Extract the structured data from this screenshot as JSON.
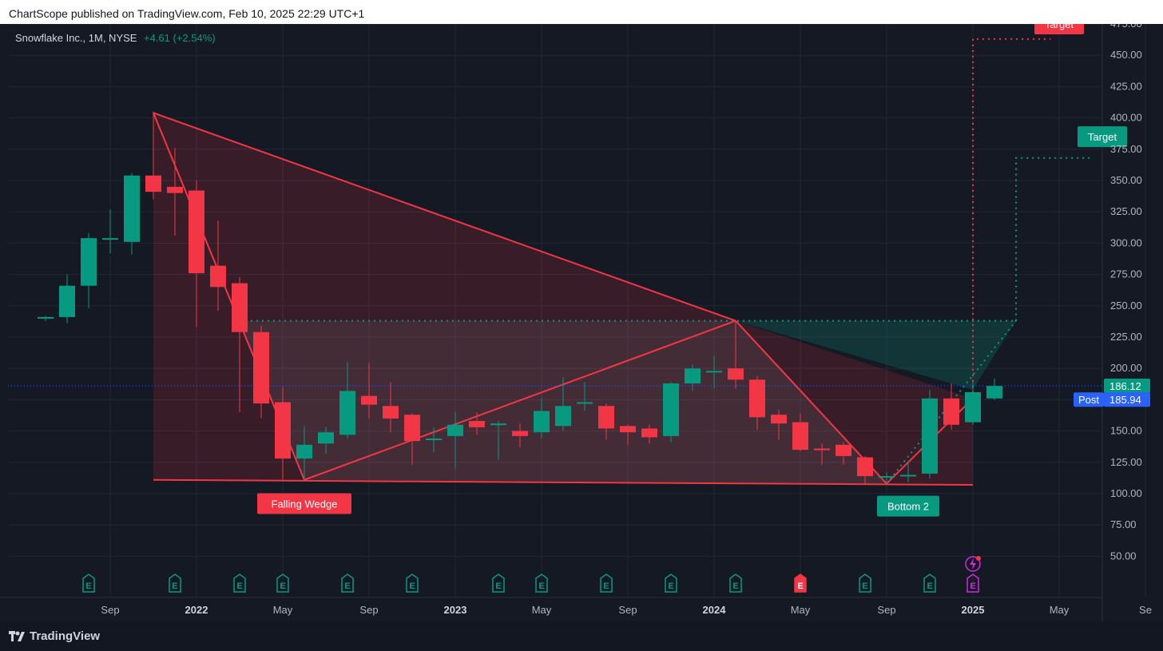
{
  "header": {
    "published_text": "ChartScope published on TradingView.com, Feb 10, 2025 22:29 UTC+1"
  },
  "symbol": {
    "name": "Snowflake Inc., 1M, NYSE",
    "change": "+4.61 (+2.54%)"
  },
  "footer": {
    "brand": "TradingView"
  },
  "colors": {
    "background": "#151924",
    "up": "#089981",
    "down": "#f23645",
    "grid": "#232735",
    "axis_text": "#b2b5be",
    "price_tag": "#2962ff"
  },
  "chart_data": {
    "type": "candlestick",
    "title": "Snowflake Inc., 1M, NYSE",
    "ylim": [
      40,
      490
    ],
    "y_ticks": [
      "475.00",
      "450.00",
      "425.00",
      "400.00",
      "375.00",
      "350.00",
      "325.00",
      "300.00",
      "275.00",
      "250.00",
      "225.00",
      "200.00",
      "175.00",
      "150.00",
      "125.00",
      "100.00",
      "75.00",
      "50.00"
    ],
    "x_ticks": [
      {
        "label": "Sep",
        "i": 2
      },
      {
        "label": "2022",
        "i": 6
      },
      {
        "label": "May",
        "i": 10
      },
      {
        "label": "Sep",
        "i": 14
      },
      {
        "label": "2023",
        "i": 18
      },
      {
        "label": "May",
        "i": 22
      },
      {
        "label": "Sep",
        "i": 26
      },
      {
        "label": "2024",
        "i": 30
      },
      {
        "label": "May",
        "i": 34
      },
      {
        "label": "Sep",
        "i": 38
      },
      {
        "label": "2025",
        "i": 42
      },
      {
        "label": "May",
        "i": 46
      },
      {
        "label": "Se",
        "i": 50
      }
    ],
    "candles": [
      {
        "i": -1,
        "o": 240,
        "h": 242,
        "l": 238,
        "c": 241
      },
      {
        "i": 0,
        "o": 241,
        "h": 275,
        "l": 236,
        "c": 266
      },
      {
        "i": 1,
        "o": 266,
        "h": 308,
        "l": 248,
        "c": 304
      },
      {
        "i": 2,
        "o": 303,
        "h": 327,
        "l": 292,
        "c": 304
      },
      {
        "i": 3,
        "o": 301,
        "h": 356,
        "l": 291,
        "c": 354
      },
      {
        "i": 4,
        "o": 354,
        "h": 405,
        "l": 335,
        "c": 341
      },
      {
        "i": 5,
        "o": 345,
        "h": 376,
        "l": 306,
        "c": 340
      },
      {
        "i": 6,
        "o": 342,
        "h": 350,
        "l": 233,
        "c": 276
      },
      {
        "i": 7,
        "o": 282,
        "h": 318,
        "l": 246,
        "c": 265
      },
      {
        "i": 8,
        "o": 268,
        "h": 273,
        "l": 165,
        "c": 229
      },
      {
        "i": 9,
        "o": 229,
        "h": 234,
        "l": 160,
        "c": 172
      },
      {
        "i": 10,
        "o": 173,
        "h": 185,
        "l": 111,
        "c": 128
      },
      {
        "i": 11,
        "o": 128,
        "h": 154,
        "l": 111,
        "c": 139
      },
      {
        "i": 12,
        "o": 140,
        "h": 153,
        "l": 132,
        "c": 149
      },
      {
        "i": 13,
        "o": 147,
        "h": 205,
        "l": 144,
        "c": 182
      },
      {
        "i": 14,
        "o": 178,
        "h": 204,
        "l": 160,
        "c": 171
      },
      {
        "i": 15,
        "o": 170,
        "h": 189,
        "l": 149,
        "c": 160
      },
      {
        "i": 16,
        "o": 163,
        "h": 164,
        "l": 123,
        "c": 142
      },
      {
        "i": 17,
        "o": 144,
        "h": 153,
        "l": 133,
        "c": 144
      },
      {
        "i": 18,
        "o": 146,
        "h": 165,
        "l": 120,
        "c": 155
      },
      {
        "i": 19,
        "o": 158,
        "h": 165,
        "l": 147,
        "c": 153
      },
      {
        "i": 20,
        "o": 155,
        "h": 158,
        "l": 127,
        "c": 156
      },
      {
        "i": 21,
        "o": 150,
        "h": 156,
        "l": 137,
        "c": 146
      },
      {
        "i": 22,
        "o": 149,
        "h": 176,
        "l": 144,
        "c": 166
      },
      {
        "i": 23,
        "o": 154,
        "h": 193,
        "l": 150,
        "c": 170
      },
      {
        "i": 24,
        "o": 172,
        "h": 189,
        "l": 166,
        "c": 173
      },
      {
        "i": 25,
        "o": 170,
        "h": 172,
        "l": 143,
        "c": 152
      },
      {
        "i": 26,
        "o": 154,
        "h": 155,
        "l": 139,
        "c": 149
      },
      {
        "i": 27,
        "o": 152,
        "h": 155,
        "l": 140,
        "c": 145
      },
      {
        "i": 28,
        "o": 146,
        "h": 189,
        "l": 141,
        "c": 188
      },
      {
        "i": 29,
        "o": 188,
        "h": 203,
        "l": 182,
        "c": 200
      },
      {
        "i": 30,
        "o": 198,
        "h": 210,
        "l": 184,
        "c": 198
      },
      {
        "i": 31,
        "o": 200,
        "h": 238,
        "l": 184,
        "c": 191
      },
      {
        "i": 32,
        "o": 191,
        "h": 194,
        "l": 151,
        "c": 161
      },
      {
        "i": 33,
        "o": 163,
        "h": 167,
        "l": 143,
        "c": 156
      },
      {
        "i": 34,
        "o": 157,
        "h": 164,
        "l": 134,
        "c": 135
      },
      {
        "i": 35,
        "o": 136,
        "h": 140,
        "l": 123,
        "c": 135
      },
      {
        "i": 36,
        "o": 139,
        "h": 141,
        "l": 123,
        "c": 130
      },
      {
        "i": 37,
        "o": 129,
        "h": 130,
        "l": 107,
        "c": 114
      },
      {
        "i": 38,
        "o": 114,
        "h": 117,
        "l": 108,
        "c": 114
      },
      {
        "i": 39,
        "o": 114,
        "h": 126,
        "l": 109,
        "c": 115
      },
      {
        "i": 40,
        "o": 116,
        "h": 183,
        "l": 112,
        "c": 176
      },
      {
        "i": 41,
        "o": 176,
        "h": 188,
        "l": 151,
        "c": 155
      },
      {
        "i": 42,
        "o": 157,
        "h": 189,
        "l": 155,
        "c": 181
      },
      {
        "i": 43,
        "o": 176,
        "h": 192,
        "l": 175,
        "c": 186
      }
    ],
    "annotations": {
      "labels": [
        {
          "text": "Falling Wedge",
          "i": 11,
          "y": 92,
          "color": "down"
        },
        {
          "text": "Bottom 2",
          "i": 39,
          "y": 90,
          "color": "up"
        },
        {
          "text": "Target",
          "i": 46,
          "y": 475,
          "color": "down"
        },
        {
          "text": "Target",
          "i": 48,
          "y": 385,
          "color": "up"
        }
      ],
      "upper_line": [
        {
          "i": 4,
          "v": 404
        },
        {
          "i": 31,
          "v": 238
        }
      ],
      "lower_line": [
        {
          "i": 4,
          "v": 111
        },
        {
          "i": 42,
          "v": 107
        }
      ],
      "wedge_line_a": [
        {
          "i": 4,
          "v": 404
        },
        {
          "i": 11,
          "v": 111
        }
      ],
      "wedge_line_b": [
        {
          "i": 11,
          "v": 111
        },
        {
          "i": 31,
          "v": 238
        }
      ],
      "wedge_line_c": [
        {
          "i": 31,
          "v": 238
        },
        {
          "i": 38,
          "v": 108
        }
      ],
      "wedge_line_d": [
        {
          "i": 38,
          "v": 108
        },
        {
          "i": 42,
          "v": 176
        }
      ],
      "neckline_value": 238,
      "red_target_value": 463,
      "green_target_value": 368,
      "dotted_up": [
        {
          "i": 38,
          "v": 108
        },
        {
          "i": 44,
          "v": 238
        }
      ],
      "price_line_value": 186.12
    },
    "events": [
      {
        "i": 1,
        "glyph": "E",
        "color": "up"
      },
      {
        "i": 5,
        "glyph": "E",
        "color": "up"
      },
      {
        "i": 8,
        "glyph": "E",
        "color": "up"
      },
      {
        "i": 10,
        "glyph": "E",
        "color": "up"
      },
      {
        "i": 13,
        "glyph": "E",
        "color": "up"
      },
      {
        "i": 16,
        "glyph": "E",
        "color": "up"
      },
      {
        "i": 20,
        "glyph": "E",
        "color": "up"
      },
      {
        "i": 22,
        "glyph": "E",
        "color": "up"
      },
      {
        "i": 25,
        "glyph": "E",
        "color": "up"
      },
      {
        "i": 28,
        "glyph": "E",
        "color": "up"
      },
      {
        "i": 31,
        "glyph": "E",
        "color": "up"
      },
      {
        "i": 34,
        "glyph": "E",
        "color": "down"
      },
      {
        "i": 37,
        "glyph": "E",
        "color": "up"
      },
      {
        "i": 40,
        "glyph": "E",
        "color": "up"
      },
      {
        "i": 42,
        "glyph": "E",
        "color": "#d12be0"
      }
    ],
    "price_tags": [
      {
        "label": "",
        "value": "186.12",
        "color": "up"
      },
      {
        "label": "Post",
        "value": "185.94",
        "color": "price_tag"
      }
    ]
  }
}
